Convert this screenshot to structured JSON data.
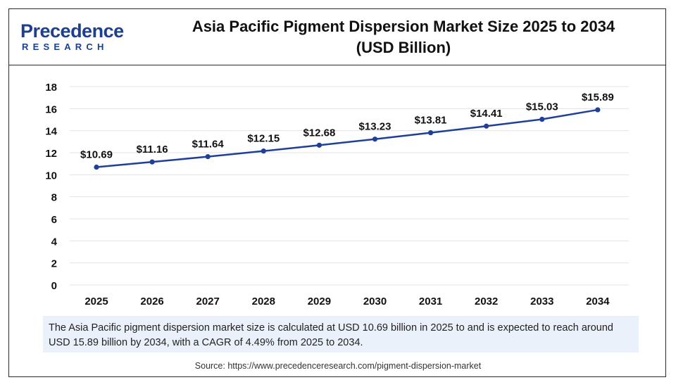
{
  "header": {
    "logo_name": "Precedence",
    "logo_sub": "RESEARCH",
    "title_line1": "Asia Pacific Pigment Dispersion Market Size 2025 to 2034",
    "title_line2": "(USD Billion)"
  },
  "colors": {
    "line": "#1f3f99",
    "grid": "#e3e3e3",
    "brand": "#1d3f8f",
    "summary_bg": "#eaf1fa"
  },
  "chart_data": {
    "type": "line",
    "title": "Asia Pacific Pigment Dispersion Market Size 2025 to 2034 (USD Billion)",
    "categories": [
      "2025",
      "2026",
      "2027",
      "2028",
      "2029",
      "2030",
      "2031",
      "2032",
      "2033",
      "2034"
    ],
    "series": [
      {
        "values": [
          10.69,
          11.16,
          11.64,
          12.15,
          12.68,
          13.23,
          13.81,
          14.41,
          15.03,
          15.89
        ],
        "labels": [
          "$10.69",
          "$11.16",
          "$11.64",
          "$12.15",
          "$12.68",
          "$13.23",
          "$13.81",
          "$14.41",
          "$15.03",
          "$15.89"
        ]
      }
    ],
    "ylim": [
      0,
      18
    ],
    "yticks": [
      "0",
      "2",
      "4",
      "6",
      "8",
      "10",
      "12",
      "14",
      "16",
      "18"
    ],
    "grid": true,
    "legend": "none",
    "xlabel": "",
    "ylabel": ""
  },
  "summary": "The Asia Pacific pigment dispersion market size is calculated at USD 10.69 billion in 2025 to and is expected to reach around USD 15.89 billion by 2034, with a CAGR of 4.49% from 2025 to 2034.",
  "source": "Source: https://www.precedenceresearch.com/pigment-dispersion-market"
}
